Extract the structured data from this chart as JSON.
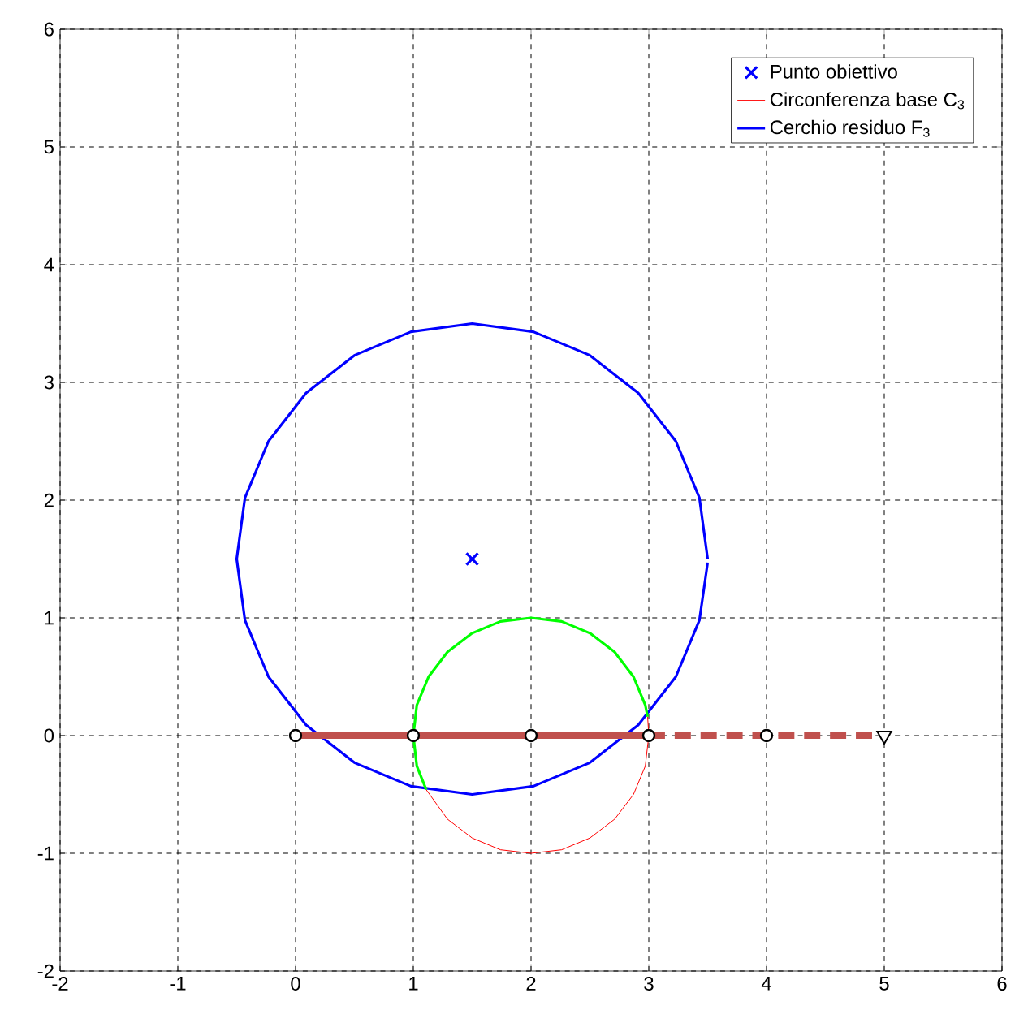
{
  "chart_data": {
    "type": "line",
    "xlim": [
      -2,
      6
    ],
    "ylim": [
      -2,
      6
    ],
    "xticks": [
      -2,
      -1,
      0,
      1,
      2,
      3,
      4,
      5,
      6
    ],
    "yticks": [
      -2,
      -1,
      0,
      1,
      2,
      3,
      4,
      5,
      6
    ],
    "grid": true,
    "legend": "top right",
    "series": [
      {
        "name": "Punto obiettivo",
        "type": "scatter",
        "marker": "cross",
        "color": "#0000ff",
        "x": [
          1.5
        ],
        "values": [
          1.5
        ]
      },
      {
        "name": "Circonferenza base C$_{3}$",
        "color": "#ff0000",
        "x": [
          1.11,
          1.29,
          1.5,
          1.74,
          2,
          2.26,
          2.5,
          2.71,
          2.87,
          2.97,
          3,
          2.99
        ],
        "values": [
          -0.46,
          -0.71,
          -0.87,
          -0.97,
          -1,
          -0.97,
          -0.87,
          -0.71,
          -0.5,
          -0.26,
          0,
          0.16
        ]
      },
      {
        "name": "Cerchio residuo F$_{3}$",
        "color": "#0000ff",
        "x": [
          3.5,
          3.43,
          3.23,
          2.91,
          2.5,
          2.02,
          1.5,
          0.98,
          0.5,
          0.09,
          -0.23,
          -0.43,
          -0.5,
          -0.43,
          -0.23,
          0.09,
          0.5,
          0.98,
          1.5,
          2.02,
          2.5,
          2.91,
          3.23,
          3.43,
          3.5
        ],
        "values": [
          1.5,
          2.02,
          2.5,
          2.91,
          3.23,
          3.43,
          3.5,
          3.43,
          3.23,
          2.91,
          2.5,
          2.02,
          1.5,
          0.98,
          0.5,
          0.09,
          -0.23,
          -0.43,
          -0.5,
          -0.43,
          -0.23,
          0.09,
          0.5,
          0.98,
          1.47
        ]
      },
      {
        "color": "#00ff00",
        "x": [
          2.99,
          2.97,
          2.87,
          2.71,
          2.5,
          2.26,
          2,
          1.74,
          1.5,
          1.29,
          1.13,
          1.03,
          1,
          1.03,
          1.11
        ],
        "values": [
          0.16,
          0.26,
          0.5,
          0.71,
          0.87,
          0.97,
          1,
          0.97,
          0.87,
          0.71,
          0.5,
          0.26,
          0,
          -0.26,
          -0.46
        ]
      },
      {
        "type": "scatter",
        "marker": "circle",
        "color": "#000000",
        "x": [
          0,
          1,
          2,
          3,
          4
        ],
        "values": [
          0,
          0,
          0,
          0,
          0
        ]
      },
      {
        "line_style": "solid",
        "color": "#c0504d",
        "x": [
          0,
          3
        ],
        "values": [
          0,
          0
        ]
      },
      {
        "line_style": "dashed",
        "color": "#c0504d",
        "x": [
          3,
          5
        ],
        "values": [
          0,
          0
        ]
      },
      {
        "type": "scatter",
        "marker": "triangle",
        "color": "#000000",
        "x": [
          5
        ],
        "values": [
          0
        ]
      }
    ]
  }
}
